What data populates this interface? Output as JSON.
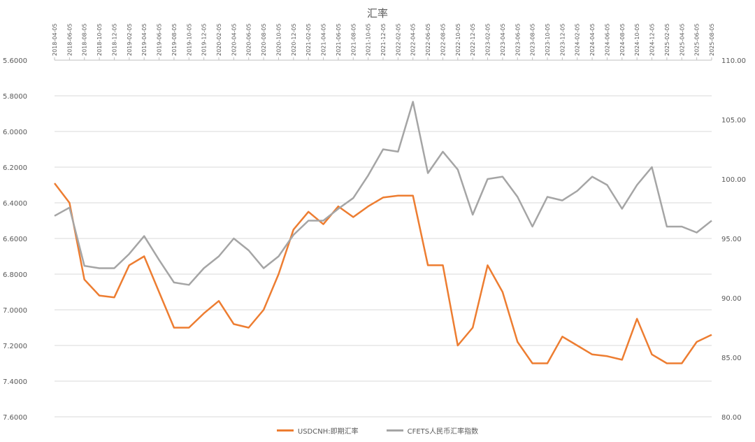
{
  "chart_data": {
    "type": "line",
    "title": "汇率",
    "x_labels": [
      "2018-04-05",
      "2018-06-05",
      "2018-08-05",
      "2018-10-05",
      "2018-12-05",
      "2019-02-05",
      "2019-04-05",
      "2019-06-05",
      "2019-08-05",
      "2019-10-05",
      "2019-12-05",
      "2020-02-05",
      "2020-04-05",
      "2020-06-05",
      "2020-08-05",
      "2020-10-05",
      "2020-12-05",
      "2021-02-05",
      "2021-04-05",
      "2021-06-05",
      "2021-08-05",
      "2021-10-05",
      "2021-12-05",
      "2022-02-05",
      "2022-04-05",
      "2022-06-05",
      "2022-08-05",
      "2022-10-05",
      "2022-12-05",
      "2023-02-05",
      "2023-04-05",
      "2023-06-05",
      "2023-08-05",
      "2023-10-05",
      "2023-12-05",
      "2024-02-05",
      "2024-04-05",
      "2024-06-05",
      "2024-08-05",
      "2024-10-05",
      "2024-12-05",
      "2025-02-05",
      "2025-04-05",
      "2025-06-05",
      "2025-08-05"
    ],
    "y_left": {
      "min": 5.6,
      "max": 7.6,
      "reversed": true,
      "ticks": [
        "5.6000",
        "5.8000",
        "6.0000",
        "6.2000",
        "6.4000",
        "6.6000",
        "6.8000",
        "7.0000",
        "7.2000",
        "7.4000",
        "7.6000"
      ]
    },
    "y_right": {
      "min": 80,
      "max": 110,
      "ticks": [
        "110.00",
        "105.00",
        "100.00",
        "95.00",
        "90.00",
        "85.00",
        "80.00"
      ]
    },
    "grid": true,
    "legend_position": "bottom",
    "series": [
      {
        "name": "USDCNH:即期汇率",
        "axis": "left",
        "color": "#ED7D31",
        "x": [
          "2018-04-05",
          "2018-06-05",
          "2018-08-05",
          "2018-10-05",
          "2018-12-05",
          "2019-02-05",
          "2019-04-05",
          "2019-06-05",
          "2019-08-05",
          "2019-10-05",
          "2019-12-05",
          "2020-02-05",
          "2020-04-05",
          "2020-06-05",
          "2020-08-05",
          "2020-10-05",
          "2020-12-05",
          "2021-02-05",
          "2021-04-05",
          "2021-06-05",
          "2021-08-05",
          "2021-10-05",
          "2021-12-05",
          "2022-02-05",
          "2022-04-05",
          "2022-06-05",
          "2022-08-05",
          "2022-10-05",
          "2022-12-05",
          "2023-02-05",
          "2023-04-05",
          "2023-06-05",
          "2023-08-05",
          "2023-10-05",
          "2023-12-05",
          "2024-02-05",
          "2024-04-05",
          "2024-06-05",
          "2024-08-05",
          "2024-10-05",
          "2024-12-05",
          "2025-02-05",
          "2025-04-05",
          "2025-06-05",
          "2025-08-05"
        ],
        "values": [
          6.29,
          6.4,
          6.83,
          6.92,
          6.93,
          6.75,
          6.7,
          6.9,
          7.1,
          7.1,
          7.02,
          6.95,
          7.08,
          7.1,
          7.0,
          6.8,
          6.55,
          6.45,
          6.52,
          6.42,
          6.48,
          6.42,
          6.37,
          6.36,
          6.36,
          6.75,
          6.75,
          7.2,
          7.1,
          6.75,
          6.9,
          7.18,
          7.3,
          7.3,
          7.15,
          7.2,
          7.25,
          7.26,
          7.28,
          7.05,
          7.25,
          7.3,
          7.3,
          7.18,
          7.14
        ]
      },
      {
        "name": "CFETS人民币汇率指数",
        "axis": "right",
        "color": "#A5A5A5",
        "x": [
          "2018-04-05",
          "2018-06-05",
          "2018-08-05",
          "2018-10-05",
          "2018-12-05",
          "2019-02-05",
          "2019-04-05",
          "2019-06-05",
          "2019-08-05",
          "2019-10-05",
          "2019-12-05",
          "2020-02-05",
          "2020-04-05",
          "2020-06-05",
          "2020-08-05",
          "2020-10-05",
          "2020-12-05",
          "2021-02-05",
          "2021-04-05",
          "2021-06-05",
          "2021-08-05",
          "2021-10-05",
          "2021-12-05",
          "2022-02-05",
          "2022-04-05",
          "2022-06-05",
          "2022-08-05",
          "2022-10-05",
          "2022-12-05",
          "2023-02-05",
          "2023-04-05",
          "2023-06-05",
          "2023-08-05",
          "2023-10-05",
          "2023-12-05",
          "2024-02-05",
          "2024-04-05",
          "2024-06-05",
          "2024-08-05",
          "2024-10-05",
          "2024-12-05",
          "2025-02-05",
          "2025-04-05",
          "2025-06-05",
          "2025-08-05"
        ],
        "values": [
          96.9,
          97.6,
          92.7,
          92.5,
          92.5,
          93.7,
          95.2,
          93.2,
          91.3,
          91.1,
          92.5,
          93.5,
          95.0,
          94.0,
          92.5,
          93.5,
          95.3,
          96.5,
          96.5,
          97.5,
          98.4,
          100.3,
          102.5,
          102.3,
          106.5,
          100.5,
          102.3,
          100.8,
          97.0,
          100.0,
          100.2,
          98.5,
          96.0,
          98.5,
          98.2,
          99.0,
          100.2,
          99.5,
          97.5,
          99.5,
          101.0,
          96.0,
          96.0,
          95.5,
          96.5
        ]
      }
    ]
  }
}
